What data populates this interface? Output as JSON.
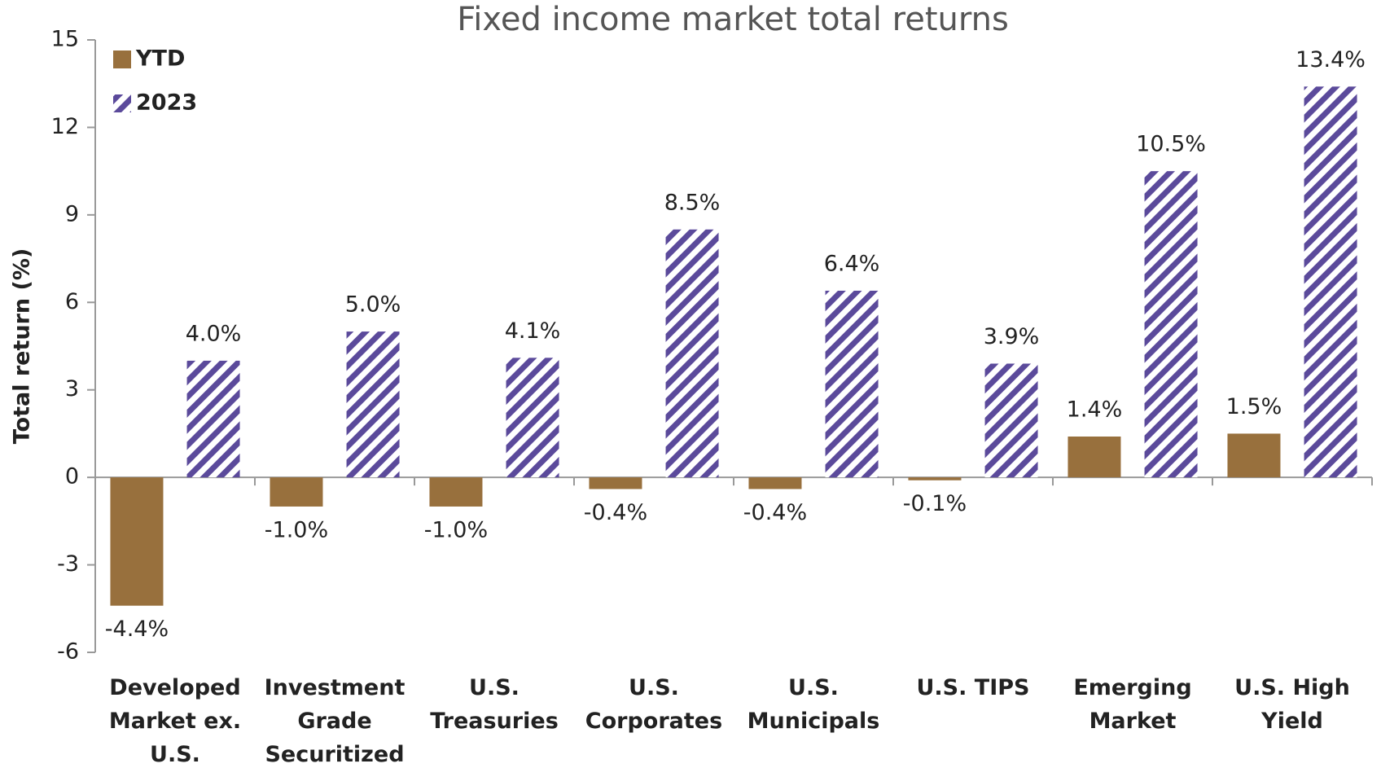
{
  "chart_data": {
    "type": "bar",
    "title": "Fixed income market total returns",
    "y_label": "Total return (%)",
    "categories": [
      "Developed Market ex. U.S.",
      "Investment Grade Securitized",
      "U.S. Treasuries",
      "U.S. Corporates",
      "U.S. Municipals",
      "U.S. TIPS",
      "Emerging Market",
      "U.S. High Yield"
    ],
    "series": [
      {
        "name": "YTD",
        "color": "#98703d",
        "pattern": "solid",
        "values": [
          -4.4,
          -1.0,
          -1.0,
          -0.4,
          -0.4,
          -0.1,
          1.4,
          1.5
        ],
        "value_labels": [
          "-4.4%",
          "-1.0%",
          "-1.0%",
          "-0.4%",
          "-0.4%",
          "-0.1%",
          "1.4%",
          "1.5%"
        ]
      },
      {
        "name": "2023",
        "color": "#5b4a9b",
        "pattern": "diagonal-stripes",
        "values": [
          4.0,
          5.0,
          4.1,
          8.5,
          6.4,
          3.9,
          10.5,
          13.4
        ],
        "value_labels": [
          "4.0%",
          "5.0%",
          "4.1%",
          "8.5%",
          "6.4%",
          "3.9%",
          "10.5%",
          "13.4%"
        ]
      }
    ],
    "ylim": [
      -6,
      15
    ],
    "yticks": [
      -6,
      -3,
      0,
      3,
      6,
      9,
      12,
      15
    ],
    "grid": false,
    "legend": "upper left"
  }
}
